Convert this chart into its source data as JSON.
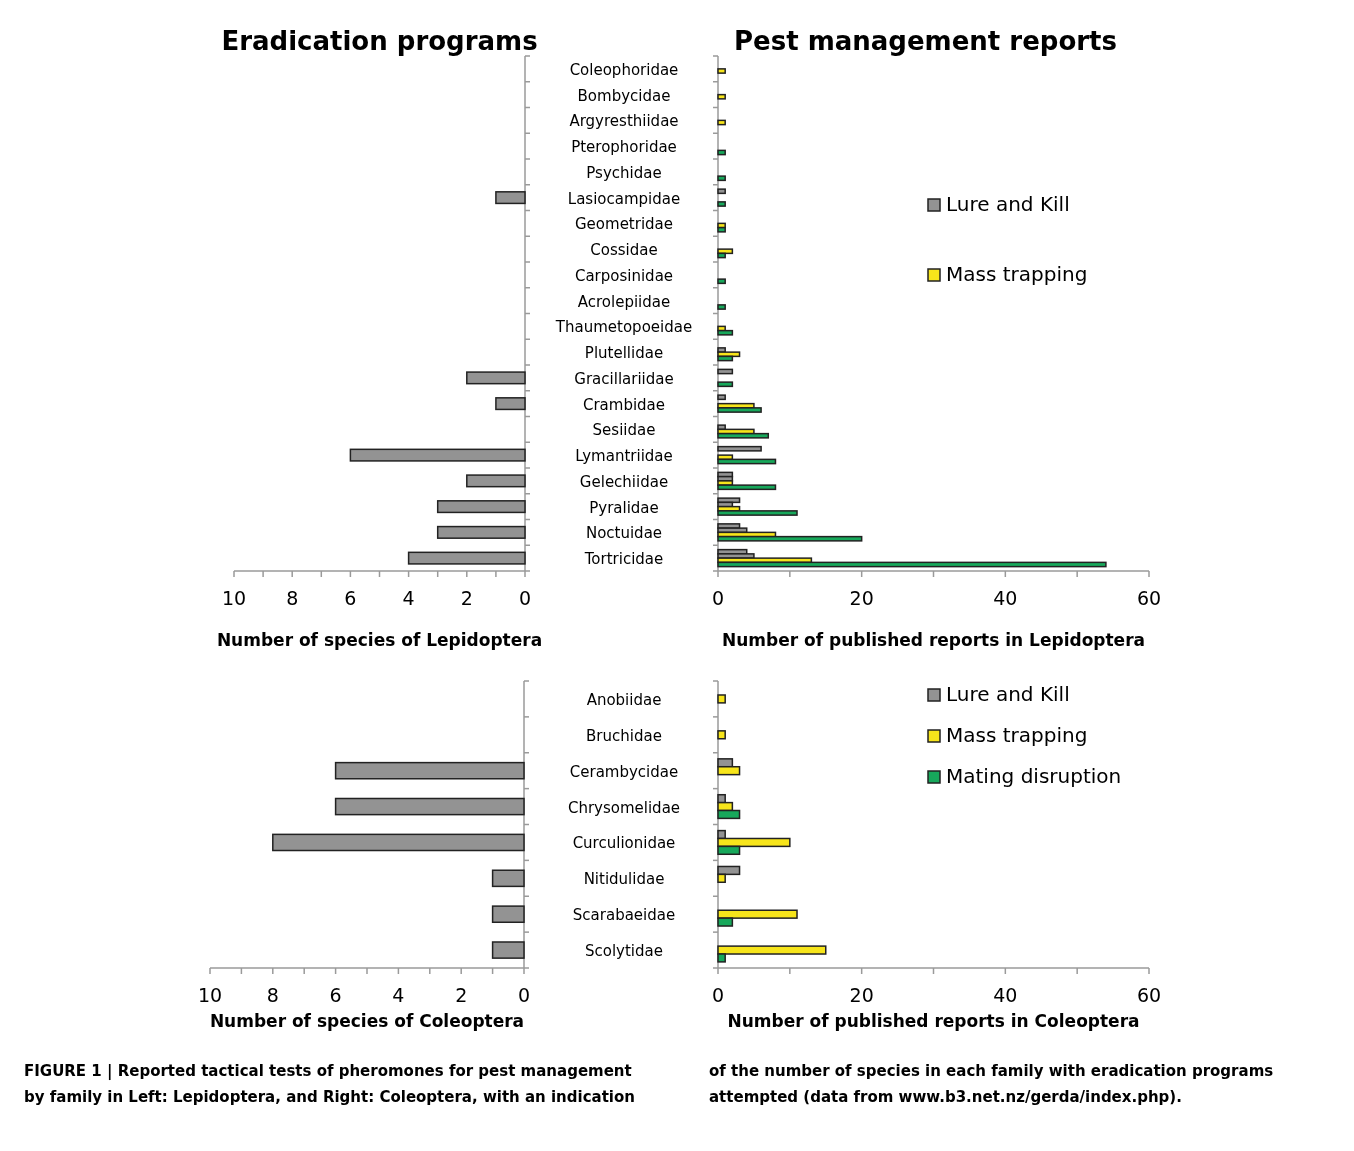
{
  "chart_data": [
    {
      "type": "bar",
      "orientation": "horizontal",
      "title": "Eradication programs",
      "xlabel": "Number of species of Lepidoptera",
      "categories": [
        null,
        null,
        null,
        null,
        null,
        null,
        null,
        null,
        null,
        null,
        null,
        null,
        null,
        null,
        null,
        null,
        null,
        null,
        null,
        null
      ],
      "series": [
        {
          "color": "#939393",
          "values": [
            null,
            null,
            null,
            null,
            null,
            1,
            null,
            null,
            null,
            null,
            null,
            null,
            2,
            1,
            null,
            6,
            2,
            3,
            3,
            4
          ]
        }
      ],
      "xlim": [
        10,
        0
      ],
      "xticks": [
        0,
        {
          "value": 1,
          "label": null
        },
        2,
        {
          "value": 3,
          "label": null
        },
        4,
        {
          "value": 5,
          "label": null
        },
        6,
        {
          "value": 7,
          "label": null
        },
        8,
        {
          "value": 9,
          "label": null
        },
        10
      ],
      "tick_labels": "x",
      "grid": false,
      "legend": false
    },
    {
      "type": "bar",
      "orientation": "horizontal",
      "title": "Pest management reports",
      "xlabel": "Number of published reports in Lepidoptera",
      "categories": [
        "Coleophoridae",
        "Bombycidae",
        "Argyresthiidae",
        "Pterophoridae",
        "Psychidae",
        "Lasiocampidae",
        "Geometridae",
        "Cossidae",
        "Carposinidae",
        "Acrolepiidae",
        "Thaumetopoeidae",
        "Plutellidae",
        "Gracillariidae",
        "Crambidae",
        "Sesiidae",
        "Lymantriidae",
        "Gelechiidae",
        "Pyralidae",
        "Noctuidae",
        "Tortricidae"
      ],
      "series": [
        {
          "name": "Lure and Kill",
          "color": "#939393",
          "values": [
            null,
            null,
            null,
            null,
            null,
            1,
            null,
            null,
            null,
            null,
            null,
            null,
            2,
            1,
            null,
            6,
            2,
            3,
            3,
            4
          ]
        },
        {
          "color": "#939393",
          "values": [
            null,
            null,
            null,
            null,
            null,
            null,
            null,
            null,
            null,
            null,
            null,
            1,
            null,
            null,
            1,
            null,
            2,
            2,
            4,
            5
          ]
        },
        {
          "name": "Mass trapping",
          "color": "#f7e51b",
          "values": [
            1,
            1,
            1,
            null,
            null,
            null,
            1,
            2,
            null,
            null,
            1,
            3,
            null,
            5,
            5,
            2,
            2,
            3,
            8,
            13
          ]
        },
        {
          "color": "#17a85b",
          "values": [
            null,
            null,
            null,
            1,
            1,
            1,
            1,
            1,
            1,
            1,
            2,
            2,
            2,
            6,
            7,
            8,
            8,
            11,
            20,
            54
          ]
        }
      ],
      "xlim": [
        0,
        60
      ],
      "xticks": [
        0,
        {
          "value": 10,
          "label": null
        },
        20,
        {
          "value": 30,
          "label": null
        },
        40,
        {
          "value": 50,
          "label": null
        },
        60
      ],
      "grid": false,
      "legend": "right"
    },
    {
      "type": "bar",
      "orientation": "horizontal",
      "xlabel": "Number of species of Coleoptera",
      "categories": [
        null,
        null,
        null,
        null,
        null,
        null,
        null,
        null
      ],
      "series": [
        {
          "color": "#939393",
          "values": [
            null,
            null,
            6,
            6,
            8,
            1,
            1,
            1
          ]
        }
      ],
      "xlim": [
        10,
        0
      ],
      "xticks": [
        0,
        {
          "value": 1,
          "label": null
        },
        2,
        {
          "value": 3,
          "label": null
        },
        4,
        {
          "value": 5,
          "label": null
        },
        6,
        {
          "value": 7,
          "label": null
        },
        8,
        {
          "value": 9,
          "label": null
        },
        10
      ],
      "tick_labels": "x",
      "grid": false,
      "legend": false
    },
    {
      "type": "bar",
      "orientation": "horizontal",
      "xlabel": "Number of published reports in Coleoptera",
      "categories": [
        "Anobiidae",
        "Bruchidae",
        "Cerambycidae",
        "Chrysomelidae",
        "Curculionidae",
        "Nitidulidae",
        "Scarabaeidae",
        "Scolytidae"
      ],
      "series": [
        {
          "name": "Lure and Kill",
          "color": "#939393",
          "values": [
            null,
            null,
            2,
            1,
            1,
            3,
            null,
            null
          ]
        },
        {
          "name": "Mass trapping",
          "color": "#f7e51b",
          "values": [
            1,
            1,
            3,
            2,
            10,
            1,
            11,
            15
          ]
        },
        {
          "name": "Mating disruption",
          "color": "#17a85b",
          "values": [
            null,
            null,
            null,
            3,
            3,
            null,
            2,
            1
          ]
        }
      ],
      "xlim": [
        0,
        60
      ],
      "xticks": [
        0,
        {
          "value": 10,
          "label": null
        },
        20,
        {
          "value": 30,
          "label": null
        },
        40,
        {
          "value": 50,
          "label": null
        },
        60
      ],
      "grid": false,
      "legend": "top right",
      "annotations": [
        "FIGURE 1 | Reported tactical tests of pheromones for pest management by family in Left: Lepidoptera, and Right: Coleoptera, with an indication of the number of species in each family with eradication programs attempted (data from www.b3.net.nz/gerda/index.php)."
      ]
    }
  ]
}
